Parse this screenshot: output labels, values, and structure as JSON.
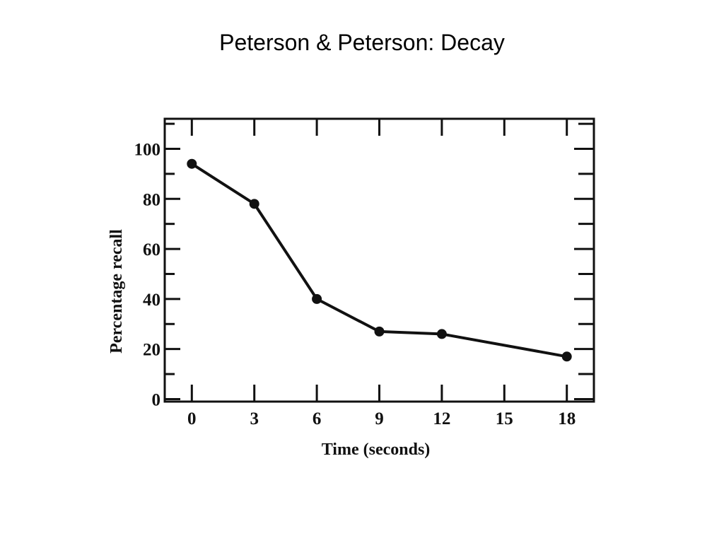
{
  "slide": {
    "title": "Peterson & Peterson: Decay"
  },
  "chart_data": {
    "type": "line",
    "title": "",
    "xlabel": "Time (seconds)",
    "ylabel": "Percentage recall",
    "x_ticks": [
      0,
      3,
      6,
      9,
      12,
      15,
      18
    ],
    "y_ticks": [
      0,
      20,
      40,
      60,
      80,
      100
    ],
    "xlim": [
      -1.3,
      19.3
    ],
    "ylim": [
      -1,
      112
    ],
    "grid": false,
    "legend": "none",
    "series": [
      {
        "x": [
          0,
          3,
          6,
          9,
          12,
          18
        ],
        "y": [
          94,
          78,
          40,
          27,
          26,
          17
        ]
      }
    ],
    "colors": {
      "line": "#111111",
      "marker": "#111111",
      "frame": "#111111"
    }
  }
}
